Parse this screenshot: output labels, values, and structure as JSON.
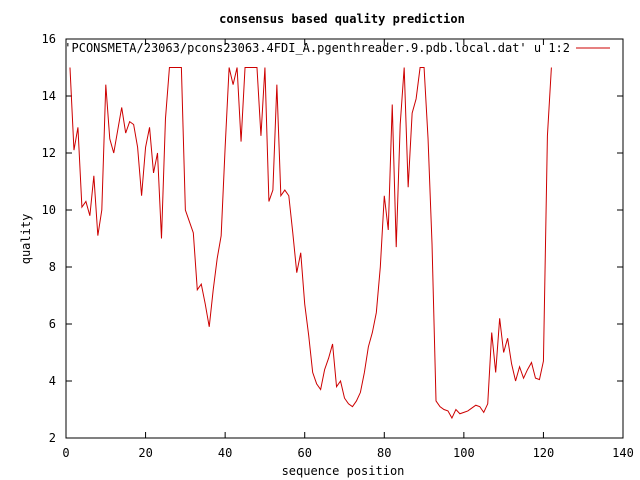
{
  "chart_data": {
    "type": "line",
    "title": "consensus based quality prediction",
    "xlabel": "sequence position",
    "ylabel": "quality",
    "xlim": [
      0,
      140
    ],
    "ylim": [
      2,
      16
    ],
    "xticks": [
      0,
      20,
      40,
      60,
      80,
      100,
      120,
      140
    ],
    "yticks": [
      2,
      4,
      6,
      8,
      10,
      12,
      14,
      16
    ],
    "xtick_labels": [
      "0",
      "20",
      "40",
      "60",
      "80",
      "100",
      "120",
      "140"
    ],
    "ytick_labels": [
      "2",
      "4",
      "6",
      "8",
      "10",
      "12",
      "14",
      "16"
    ],
    "grid": false,
    "legend_position": "top-right",
    "series": [
      {
        "name": "'PCONSMETA/23063/pcons23063.4FDI_A.pgenthreader.9.pdb.local.dat' u 1:2",
        "color": "#cc0000",
        "x": [
          1,
          2,
          3,
          4,
          5,
          6,
          7,
          8,
          9,
          10,
          11,
          12,
          13,
          14,
          15,
          16,
          17,
          18,
          19,
          20,
          21,
          22,
          23,
          24,
          25,
          26,
          27,
          28,
          29,
          30,
          31,
          32,
          33,
          34,
          35,
          36,
          37,
          38,
          39,
          40,
          41,
          42,
          43,
          44,
          45,
          46,
          47,
          48,
          49,
          50,
          51,
          52,
          53,
          54,
          55,
          56,
          57,
          58,
          59,
          60,
          61,
          62,
          63,
          64,
          65,
          66,
          67,
          68,
          69,
          70,
          71,
          72,
          73,
          74,
          75,
          76,
          77,
          78,
          79,
          80,
          81,
          82,
          83,
          84,
          85,
          86,
          87,
          88,
          89,
          90,
          91,
          92,
          93,
          94,
          95,
          96,
          97,
          98,
          99,
          100,
          101,
          102,
          103,
          104,
          105,
          106,
          107,
          108,
          109,
          110,
          111,
          112,
          113,
          114,
          115,
          116,
          117,
          118,
          119,
          120,
          121,
          122
        ],
        "y": [
          15.0,
          12.1,
          12.9,
          10.1,
          10.3,
          9.8,
          11.2,
          9.1,
          10.0,
          14.4,
          12.5,
          12.0,
          12.8,
          13.6,
          12.7,
          13.1,
          13.0,
          12.2,
          10.5,
          12.2,
          12.9,
          11.3,
          12.0,
          9.0,
          13.2,
          15.0,
          15.0,
          15.0,
          15.0,
          10.0,
          9.6,
          9.2,
          7.2,
          7.4,
          6.7,
          5.9,
          7.2,
          8.3,
          9.1,
          12.2,
          15.0,
          14.4,
          15.0,
          12.4,
          15.0,
          15.0,
          15.0,
          15.0,
          12.6,
          15.0,
          10.3,
          10.7,
          14.4,
          10.5,
          10.7,
          10.5,
          9.2,
          7.8,
          8.5,
          6.7,
          5.6,
          4.3,
          3.9,
          3.7,
          4.4,
          4.8,
          5.3,
          3.8,
          4.0,
          3.4,
          3.2,
          3.1,
          3.3,
          3.6,
          4.3,
          5.2,
          5.7,
          6.4,
          8.0,
          10.5,
          9.3,
          13.7,
          8.7,
          13.0,
          15.0,
          10.8,
          13.4,
          13.9,
          15.0,
          15.0,
          12.5,
          8.8,
          3.3,
          3.1,
          3.0,
          2.95,
          2.7,
          3.0,
          2.85,
          2.9,
          2.95,
          3.05,
          3.15,
          3.1,
          2.9,
          3.2,
          5.7,
          4.3,
          6.2,
          5.0,
          5.5,
          4.6,
          4.0,
          4.5,
          4.1,
          4.4,
          4.65,
          4.1,
          4.05,
          4.7,
          12.6,
          15.0
        ]
      }
    ]
  }
}
